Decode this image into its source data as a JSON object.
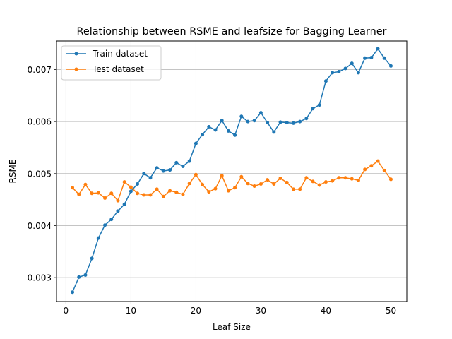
{
  "chart_data": {
    "type": "line",
    "title": "Relationship between RSME and leafsize for Bagging Learner",
    "xlabel": "Leaf Size",
    "ylabel": "RSME",
    "xlim": [
      -1.45,
      52.45
    ],
    "ylim": [
      0.00254,
      0.00755
    ],
    "xticks": [
      0,
      10,
      20,
      30,
      40,
      50
    ],
    "yticks": [
      0.003,
      0.004,
      0.005,
      0.006,
      0.007
    ],
    "ytick_labels": [
      "0.003",
      "0.004",
      "0.005",
      "0.006",
      "0.007"
    ],
    "grid": true,
    "legend_position": "upper left",
    "x": [
      1,
      2,
      3,
      4,
      5,
      6,
      7,
      8,
      9,
      10,
      11,
      12,
      13,
      14,
      15,
      16,
      17,
      18,
      19,
      20,
      21,
      22,
      23,
      24,
      25,
      26,
      27,
      28,
      29,
      30,
      31,
      32,
      33,
      34,
      35,
      36,
      37,
      38,
      39,
      40,
      41,
      42,
      43,
      44,
      45,
      46,
      47,
      48,
      49,
      50
    ],
    "series": [
      {
        "name": "Train dataset",
        "color": "#1f77b4",
        "values": [
          0.00272,
          0.00301,
          0.00305,
          0.00337,
          0.00376,
          0.00401,
          0.00412,
          0.00428,
          0.00441,
          0.00466,
          0.0048,
          0.005,
          0.00492,
          0.00511,
          0.00505,
          0.00507,
          0.00521,
          0.00514,
          0.00524,
          0.00558,
          0.00575,
          0.0059,
          0.00584,
          0.00602,
          0.00582,
          0.00574,
          0.0061,
          0.006,
          0.00602,
          0.00617,
          0.00598,
          0.0058,
          0.00599,
          0.00598,
          0.00597,
          0.006,
          0.00606,
          0.00625,
          0.00632,
          0.00678,
          0.00694,
          0.00696,
          0.00702,
          0.00712,
          0.00694,
          0.00722,
          0.00723,
          0.0074,
          0.00722,
          0.00707
        ]
      },
      {
        "name": "Test dataset",
        "color": "#ff7f0e",
        "values": [
          0.00473,
          0.0046,
          0.00479,
          0.00462,
          0.00463,
          0.00453,
          0.00462,
          0.00448,
          0.00484,
          0.00474,
          0.00462,
          0.00459,
          0.00459,
          0.0047,
          0.00456,
          0.00467,
          0.00464,
          0.0046,
          0.00481,
          0.00498,
          0.00479,
          0.00465,
          0.00471,
          0.00496,
          0.00467,
          0.00473,
          0.00494,
          0.00481,
          0.00476,
          0.0048,
          0.00488,
          0.0048,
          0.00491,
          0.00483,
          0.0047,
          0.0047,
          0.00492,
          0.00485,
          0.00478,
          0.00484,
          0.00486,
          0.00492,
          0.00492,
          0.0049,
          0.00487,
          0.00508,
          0.00515,
          0.00524,
          0.00506,
          0.00489
        ]
      }
    ]
  }
}
